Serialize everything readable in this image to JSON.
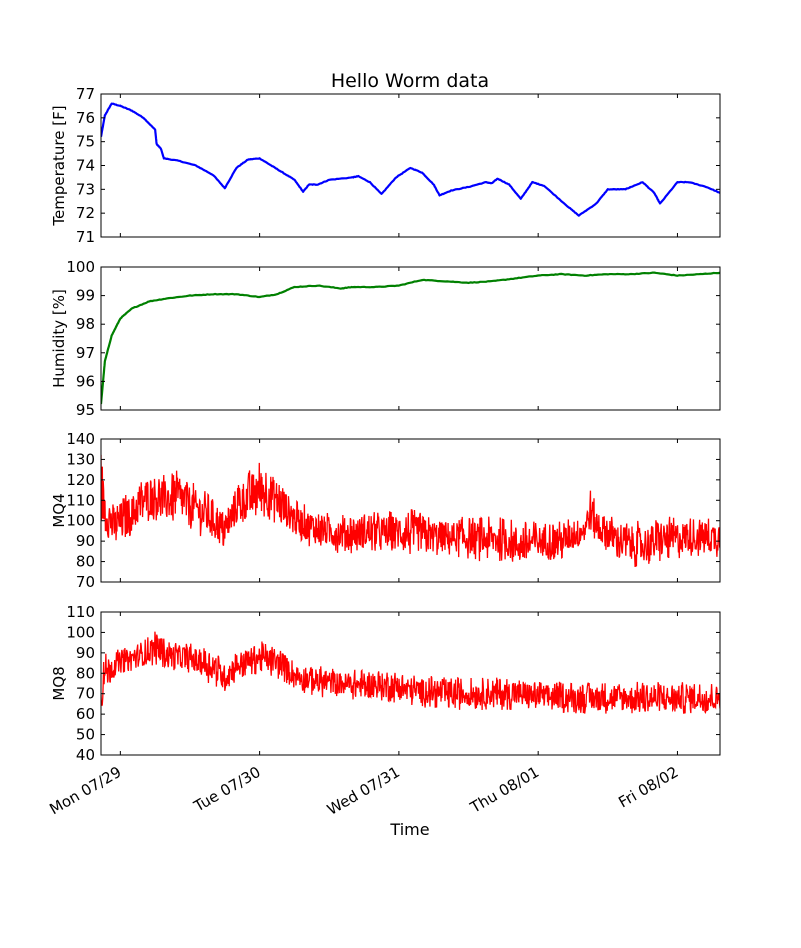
{
  "chart_data": {
    "type": "line",
    "title": "Hello Worm data",
    "xlabel": "Time",
    "x_axis": {
      "kind": "date",
      "xlim": [
        "2013-07-28T20:40",
        "2013-08-02T07:20"
      ],
      "ticks": [
        {
          "at": "2013-07-29T00:00",
          "label": "Mon 07/29"
        },
        {
          "at": "2013-07-30T00:00",
          "label": "Tue 07/30"
        },
        {
          "at": "2013-07-31T00:00",
          "label": "Wed 07/31"
        },
        {
          "at": "2013-08-01T00:00",
          "label": "Thu 08/01"
        },
        {
          "at": "2013-08-02T00:00",
          "label": "Fri 08/02"
        }
      ]
    },
    "grid": false,
    "panels": [
      {
        "id": "temperature",
        "ylabel": "Temperature [F]",
        "ylim": [
          71,
          77
        ],
        "yticks": [
          71,
          72,
          73,
          74,
          75,
          76,
          77
        ],
        "series": [
          {
            "color": "#0000ff",
            "style": "smooth",
            "points": [
              [
                "2013-07-28T20:40",
                75.2
              ],
              [
                "2013-07-28T21:20",
                76.1
              ],
              [
                "2013-07-28T22:30",
                76.6
              ],
              [
                "2013-07-29T00:00",
                76.5
              ],
              [
                "2013-07-29T02:00",
                76.3
              ],
              [
                "2013-07-29T04:00",
                76.0
              ],
              [
                "2013-07-29T06:00",
                75.5
              ],
              [
                "2013-07-29T06:15",
                74.9
              ],
              [
                "2013-07-29T07:00",
                74.7
              ],
              [
                "2013-07-29T07:30",
                74.3
              ],
              [
                "2013-07-29T10:00",
                74.2
              ],
              [
                "2013-07-29T13:00",
                74.0
              ],
              [
                "2013-07-29T16:00",
                73.6
              ],
              [
                "2013-07-29T18:00",
                73.05
              ],
              [
                "2013-07-29T20:00",
                73.9
              ],
              [
                "2013-07-29T22:00",
                74.25
              ],
              [
                "2013-07-30T00:00",
                74.3
              ],
              [
                "2013-07-30T02:00",
                74.0
              ],
              [
                "2013-07-30T04:00",
                73.7
              ],
              [
                "2013-07-30T06:00",
                73.4
              ],
              [
                "2013-07-30T07:30",
                72.9
              ],
              [
                "2013-07-30T08:30",
                73.2
              ],
              [
                "2013-07-30T10:00",
                73.2
              ],
              [
                "2013-07-30T12:00",
                73.4
              ],
              [
                "2013-07-30T16:00",
                73.5
              ],
              [
                "2013-07-30T17:00",
                73.55
              ],
              [
                "2013-07-30T19:00",
                73.3
              ],
              [
                "2013-07-30T21:00",
                72.8
              ],
              [
                "2013-07-30T23:30",
                73.5
              ],
              [
                "2013-07-31T02:00",
                73.9
              ],
              [
                "2013-07-31T04:00",
                73.7
              ],
              [
                "2013-07-31T06:00",
                73.2
              ],
              [
                "2013-07-31T07:00",
                72.75
              ],
              [
                "2013-07-31T09:00",
                72.95
              ],
              [
                "2013-07-31T12:00",
                73.1
              ],
              [
                "2013-07-31T15:00",
                73.3
              ],
              [
                "2013-07-31T16:00",
                73.25
              ],
              [
                "2013-07-31T17:00",
                73.45
              ],
              [
                "2013-07-31T19:00",
                73.2
              ],
              [
                "2013-07-31T21:00",
                72.6
              ],
              [
                "2013-07-31T23:00",
                73.3
              ],
              [
                "2013-08-01T01:00",
                73.15
              ],
              [
                "2013-08-01T05:00",
                72.3
              ],
              [
                "2013-08-01T07:00",
                71.9
              ],
              [
                "2013-08-01T10:00",
                72.4
              ],
              [
                "2013-08-01T12:00",
                73.0
              ],
              [
                "2013-08-01T15:00",
                73.0
              ],
              [
                "2013-08-01T16:00",
                73.1
              ],
              [
                "2013-08-01T18:00",
                73.3
              ],
              [
                "2013-08-01T20:00",
                72.85
              ],
              [
                "2013-08-01T21:00",
                72.4
              ],
              [
                "2013-08-02T00:00",
                73.3
              ],
              [
                "2013-08-02T02:00",
                73.3
              ],
              [
                "2013-08-02T05:00",
                73.1
              ],
              [
                "2013-08-02T07:20",
                72.85
              ]
            ]
          }
        ]
      },
      {
        "id": "humidity",
        "ylabel": "Humidity [%]",
        "ylim": [
          95,
          100
        ],
        "yticks": [
          95,
          96,
          97,
          98,
          99,
          100
        ],
        "series": [
          {
            "color": "#008000",
            "style": "smooth",
            "points": [
              [
                "2013-07-28T20:40",
                95.2
              ],
              [
                "2013-07-28T21:20",
                96.7
              ],
              [
                "2013-07-28T22:30",
                97.6
              ],
              [
                "2013-07-29T00:00",
                98.2
              ],
              [
                "2013-07-29T02:00",
                98.55
              ],
              [
                "2013-07-29T05:00",
                98.8
              ],
              [
                "2013-07-29T08:00",
                98.9
              ],
              [
                "2013-07-29T12:00",
                99.0
              ],
              [
                "2013-07-29T16:00",
                99.05
              ],
              [
                "2013-07-29T20:00",
                99.05
              ],
              [
                "2013-07-30T00:00",
                98.95
              ],
              [
                "2013-07-30T03:00",
                99.05
              ],
              [
                "2013-07-30T06:00",
                99.3
              ],
              [
                "2013-07-30T10:00",
                99.35
              ],
              [
                "2013-07-30T14:00",
                99.25
              ],
              [
                "2013-07-30T16:00",
                99.3
              ],
              [
                "2013-07-30T20:00",
                99.3
              ],
              [
                "2013-07-31T00:00",
                99.35
              ],
              [
                "2013-07-31T04:00",
                99.55
              ],
              [
                "2013-07-31T08:00",
                99.5
              ],
              [
                "2013-07-31T12:00",
                99.45
              ],
              [
                "2013-07-31T16:00",
                99.5
              ],
              [
                "2013-07-31T20:00",
                99.6
              ],
              [
                "2013-08-01T00:00",
                99.7
              ],
              [
                "2013-08-01T04:00",
                99.75
              ],
              [
                "2013-08-01T08:00",
                99.7
              ],
              [
                "2013-08-01T12:00",
                99.75
              ],
              [
                "2013-08-01T16:00",
                99.75
              ],
              [
                "2013-08-01T20:00",
                99.8
              ],
              [
                "2013-08-02T00:00",
                99.7
              ],
              [
                "2013-08-02T04:00",
                99.75
              ],
              [
                "2013-08-02T07:20",
                99.8
              ]
            ]
          }
        ]
      },
      {
        "id": "mq4",
        "ylabel": "MQ4",
        "ylim": [
          70,
          140
        ],
        "yticks": [
          70,
          80,
          90,
          100,
          110,
          120,
          130,
          140
        ],
        "series": [
          {
            "color": "#ff0000",
            "style": "noisy-envelope",
            "envelope": [
              [
                "2013-07-28T20:40",
                95,
                135
              ],
              [
                "2013-07-28T21:30",
                92,
                115
              ],
              [
                "2013-07-28T23:00",
                86,
                108
              ],
              [
                "2013-07-29T00:00",
                88,
                112
              ],
              [
                "2013-07-29T02:00",
                92,
                115
              ],
              [
                "2013-07-29T04:00",
                98,
                122
              ],
              [
                "2013-07-29T06:00",
                100,
                125
              ],
              [
                "2013-07-29T08:00",
                98,
                122
              ],
              [
                "2013-07-29T10:00",
                98,
                125
              ],
              [
                "2013-07-29T12:00",
                96,
                120
              ],
              [
                "2013-07-29T14:00",
                92,
                116
              ],
              [
                "2013-07-29T16:00",
                90,
                112
              ],
              [
                "2013-07-29T17:30",
                84,
                105
              ],
              [
                "2013-07-29T18:30",
                88,
                108
              ],
              [
                "2013-07-29T20:00",
                95,
                120
              ],
              [
                "2013-07-29T22:00",
                98,
                125
              ],
              [
                "2013-07-30T00:00",
                100,
                130
              ],
              [
                "2013-07-30T02:00",
                100,
                126
              ],
              [
                "2013-07-30T04:00",
                95,
                120
              ],
              [
                "2013-07-30T06:00",
                92,
                110
              ],
              [
                "2013-07-30T08:00",
                88,
                108
              ],
              [
                "2013-07-30T10:00",
                86,
                105
              ],
              [
                "2013-07-30T14:00",
                84,
                104
              ],
              [
                "2013-07-30T18:00",
                84,
                104
              ],
              [
                "2013-07-30T22:00",
                84,
                105
              ],
              [
                "2013-07-31T02:00",
                82,
                106
              ],
              [
                "2013-07-31T06:00",
                82,
                102
              ],
              [
                "2013-07-31T10:00",
                82,
                102
              ],
              [
                "2013-07-31T14:00",
                80,
                102
              ],
              [
                "2013-07-31T18:00",
                80,
                102
              ],
              [
                "2013-07-31T21:00",
                76,
                100
              ],
              [
                "2013-08-01T00:00",
                80,
                100
              ],
              [
                "2013-08-01T04:00",
                80,
                100
              ],
              [
                "2013-08-01T08:00",
                88,
                104
              ],
              [
                "2013-08-01T09:00",
                94,
                116
              ],
              [
                "2013-08-01T10:00",
                88,
                108
              ],
              [
                "2013-08-01T14:00",
                80,
                100
              ],
              [
                "2013-08-01T18:00",
                76,
                100
              ],
              [
                "2013-08-01T22:00",
                80,
                102
              ],
              [
                "2013-08-02T02:00",
                82,
                102
              ],
              [
                "2013-08-02T07:20",
                82,
                102
              ]
            ]
          }
        ]
      },
      {
        "id": "mq8",
        "ylabel": "MQ8",
        "ylim": [
          40,
          110
        ],
        "yticks": [
          40,
          50,
          60,
          70,
          80,
          90,
          100,
          110
        ],
        "series": [
          {
            "color": "#ff0000",
            "style": "noisy-envelope",
            "envelope": [
              [
                "2013-07-28T20:40",
                60,
                85
              ],
              [
                "2013-07-28T21:30",
                72,
                90
              ],
              [
                "2013-07-29T00:00",
                80,
                92
              ],
              [
                "2013-07-29T04:00",
                82,
                96
              ],
              [
                "2013-07-29T06:00",
                84,
                102
              ],
              [
                "2013-07-29T08:00",
                82,
                96
              ],
              [
                "2013-07-29T12:00",
                80,
                95
              ],
              [
                "2013-07-29T16:00",
                74,
                92
              ],
              [
                "2013-07-29T18:00",
                70,
                86
              ],
              [
                "2013-07-29T20:00",
                76,
                92
              ],
              [
                "2013-07-30T00:00",
                80,
                96
              ],
              [
                "2013-07-30T04:00",
                76,
                92
              ],
              [
                "2013-07-30T06:00",
                72,
                86
              ],
              [
                "2013-07-30T10:00",
                68,
                84
              ],
              [
                "2013-07-30T14:00",
                68,
                82
              ],
              [
                "2013-07-30T18:00",
                66,
                82
              ],
              [
                "2013-07-30T22:00",
                66,
                82
              ],
              [
                "2013-07-31T02:00",
                64,
                80
              ],
              [
                "2013-07-31T08:00",
                62,
                78
              ],
              [
                "2013-07-31T14:00",
                62,
                78
              ],
              [
                "2013-07-31T20:00",
                62,
                78
              ],
              [
                "2013-08-01T02:00",
                61,
                76
              ],
              [
                "2013-08-01T08:00",
                60,
                76
              ],
              [
                "2013-08-01T14:00",
                60,
                76
              ],
              [
                "2013-08-01T20:00",
                59,
                76
              ],
              [
                "2013-08-02T02:00",
                60,
                76
              ],
              [
                "2013-08-02T07:20",
                60,
                76
              ]
            ]
          }
        ]
      }
    ]
  }
}
